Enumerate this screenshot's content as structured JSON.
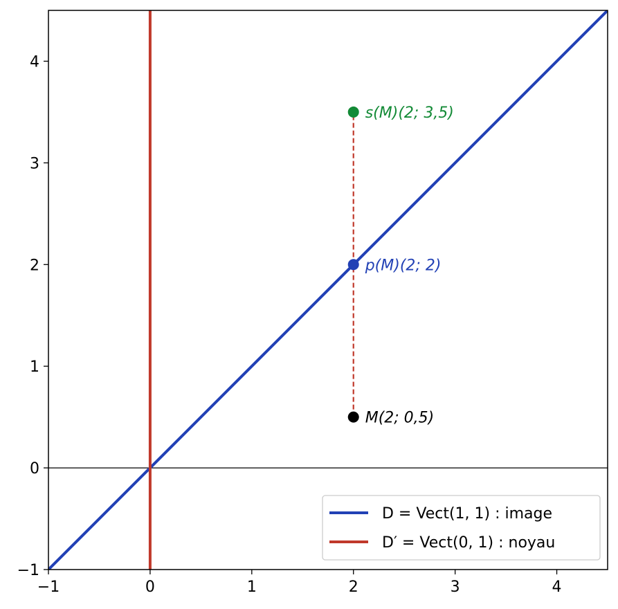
{
  "chart_data": {
    "type": "line",
    "xlim": [
      -1,
      4.5
    ],
    "ylim": [
      -1,
      4.5
    ],
    "x_ticks": [
      {
        "value": -1,
        "label": "−1"
      },
      {
        "value": 0,
        "label": "0"
      },
      {
        "value": 1,
        "label": "1"
      },
      {
        "value": 2,
        "label": "2"
      },
      {
        "value": 3,
        "label": "3"
      },
      {
        "value": 4,
        "label": "4"
      }
    ],
    "y_ticks": [
      {
        "value": -1,
        "label": "−1"
      },
      {
        "value": 0,
        "label": "0"
      },
      {
        "value": 1,
        "label": "1"
      },
      {
        "value": 2,
        "label": "2"
      },
      {
        "value": 3,
        "label": "3"
      },
      {
        "value": 4,
        "label": "4"
      }
    ],
    "grid": false,
    "series": [
      {
        "name": "D = Vect(1, 1) : image",
        "color": "#2241b5",
        "points": [
          [
            -1,
            -1
          ],
          [
            4.5,
            4.5
          ]
        ]
      },
      {
        "name": "D′ = Vect(0, 1) : noyau",
        "color": "#c0392b",
        "points": [
          [
            0,
            -1
          ],
          [
            0,
            4.5
          ]
        ]
      }
    ],
    "reference_lines": [
      {
        "axis": "y",
        "value": 0,
        "color": "#000000"
      }
    ],
    "segments": [
      {
        "from": [
          2,
          0.5
        ],
        "to": [
          2,
          3.5
        ],
        "style": "dashed",
        "color": "#c0392b"
      }
    ],
    "points": [
      {
        "x": 2,
        "y": 0.5,
        "label": "M(2; 0,5)",
        "color": "#000000"
      },
      {
        "x": 2,
        "y": 2,
        "label": "p(M)(2; 2)",
        "color": "#2241b5"
      },
      {
        "x": 2,
        "y": 3.5,
        "label": "s(M)(2; 3,5)",
        "color": "#138a36"
      }
    ],
    "legend": {
      "position": "bottom-right",
      "entries": [
        {
          "text": "D = Vect(1, 1) : image",
          "color": "#2241b5"
        },
        {
          "text": "D′ = Vect(0, 1) : noyau",
          "color": "#c0392b"
        }
      ]
    }
  }
}
